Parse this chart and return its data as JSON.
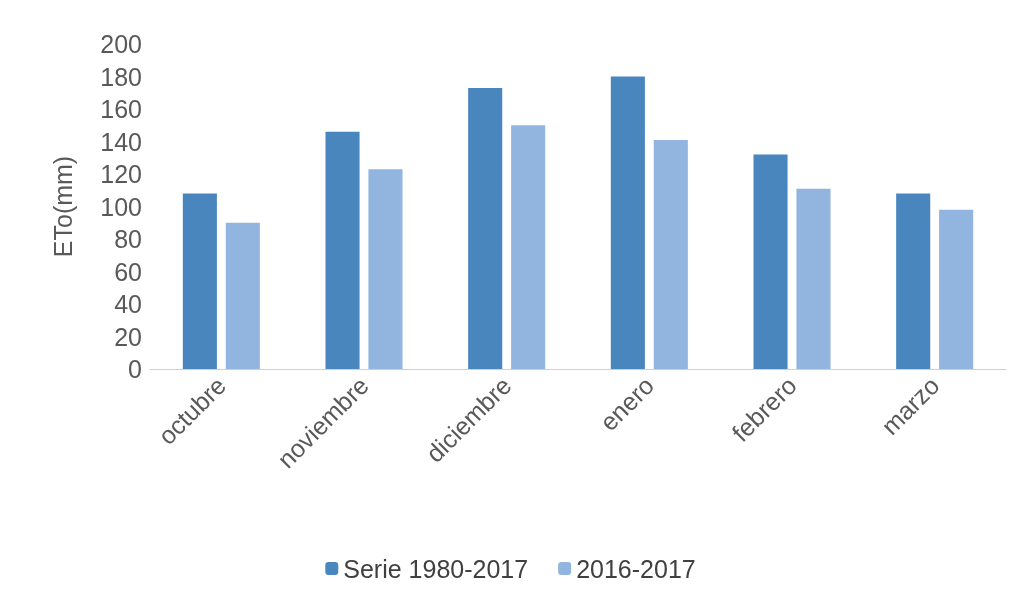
{
  "chart_data": {
    "type": "bar",
    "ylabel": "ETo(mm)",
    "categories": [
      "octubre",
      "noviembre",
      "diciembre",
      "enero",
      "febrero",
      "marzo"
    ],
    "series": [
      {
        "name": "Serie 1980-2017",
        "color": "#4a86be",
        "values": [
          108,
          146,
          173,
          180,
          132,
          108
        ]
      },
      {
        "name": "2016-2017",
        "color": "#91b5de",
        "values": [
          90,
          123,
          150,
          141,
          111,
          98
        ]
      }
    ],
    "ylim": [
      0,
      200
    ],
    "yticks": [
      0,
      20,
      40,
      60,
      80,
      100,
      120,
      140,
      160,
      180,
      200
    ],
    "grid": false,
    "legend": "bottom"
  }
}
